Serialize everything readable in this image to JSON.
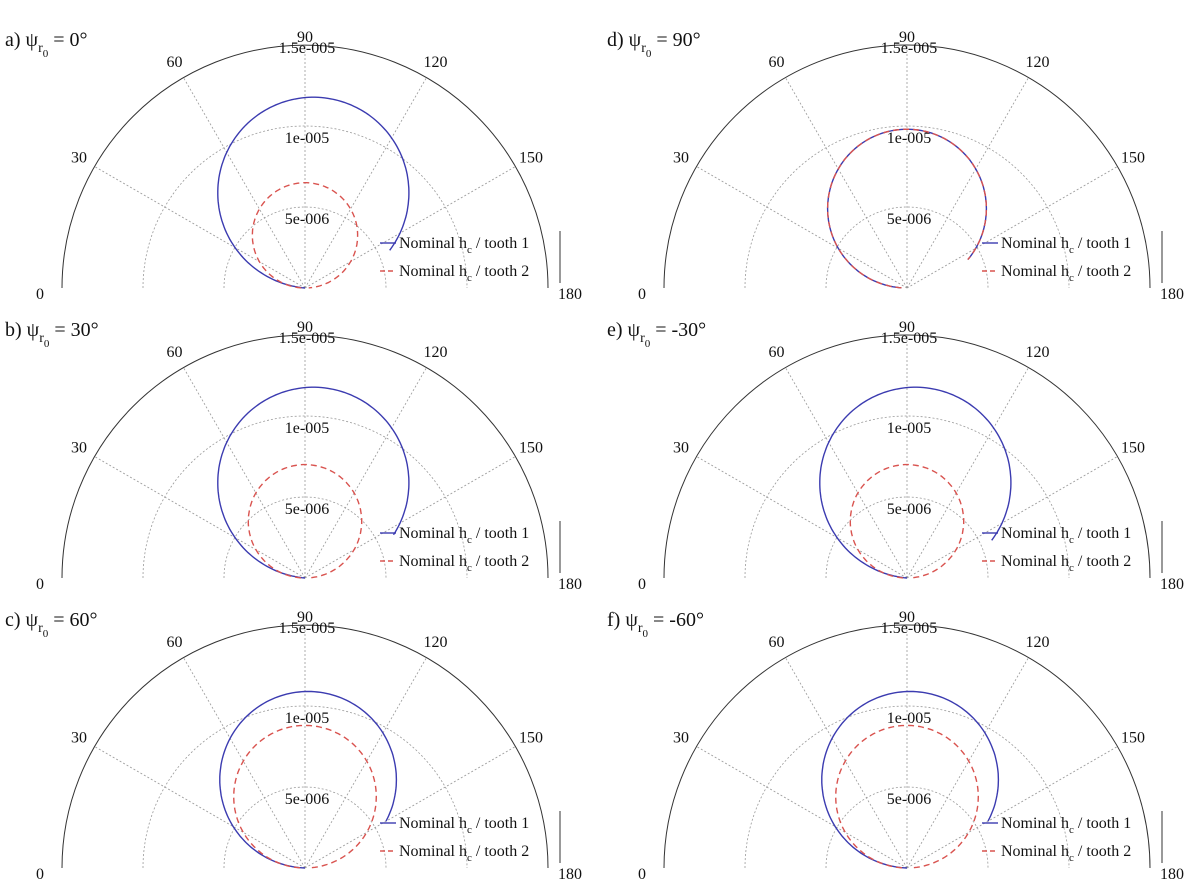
{
  "legend": {
    "series1": "Nominal h",
    "series1_sub": "c",
    "series1_suffix": " / tooth 1",
    "series2": "Nominal h",
    "series2_sub": "c",
    "series2_suffix": " / tooth 2"
  },
  "colors": {
    "series1": "#3b3bb0",
    "series2": "#d9534f",
    "axis": "#333333",
    "grid": "#9a9a9a"
  },
  "chart_data": [
    {
      "type": "polar-line",
      "panel_label": "a) ψ",
      "subscript": "r",
      "subsubscript": "0",
      "angle_text": " = 0°",
      "theta_ticks": [
        "0",
        "30",
        "60",
        "90",
        "120",
        "150",
        "180"
      ],
      "r_ticks": [
        "5e-006",
        "1e-005",
        "1.5e-005"
      ],
      "rlim": [
        0,
        1.5e-05
      ],
      "thetalim": [
        0,
        180
      ],
      "series": [
        {
          "values": {
            "r_max": 1.18e-05,
            "theta_peak": 95,
            "theta_start": 2,
            "theta_end": 156
          }
        },
        {
          "values": {
            "r_max": 6.5e-06,
            "theta_peak": 90,
            "theta_start": 2,
            "theta_end": 178
          }
        }
      ]
    },
    {
      "type": "polar-line",
      "panel_label": "b) ψ",
      "subscript": "r",
      "subsubscript": "0",
      "angle_text": " = 30°",
      "theta_ticks": [
        "0",
        "30",
        "60",
        "90",
        "120",
        "150",
        "180"
      ],
      "r_ticks": [
        "5e-006",
        "1e-005",
        "1.5e-005"
      ],
      "rlim": [
        0,
        1.5e-05
      ],
      "thetalim": [
        0,
        180
      ],
      "series": [
        {
          "values": {
            "r_max": 1.18e-05,
            "theta_peak": 95,
            "theta_start": 2,
            "theta_end": 154
          }
        },
        {
          "values": {
            "r_max": 7e-06,
            "theta_peak": 90,
            "theta_start": 2,
            "theta_end": 178
          }
        }
      ]
    },
    {
      "type": "polar-line",
      "panel_label": "c) ψ",
      "subscript": "r",
      "subsubscript": "0",
      "angle_text": " = 60°",
      "theta_ticks": [
        "0",
        "30",
        "60",
        "90",
        "120",
        "150",
        "180"
      ],
      "r_ticks": [
        "5e-006",
        "1e-005",
        "1.5e-005"
      ],
      "rlim": [
        0,
        1.5e-05
      ],
      "thetalim": [
        0,
        180
      ],
      "series": [
        {
          "values": {
            "r_max": 1.09e-05,
            "theta_peak": 92,
            "theta_start": 2,
            "theta_end": 150
          }
        },
        {
          "values": {
            "r_max": 8.8e-06,
            "theta_peak": 90,
            "theta_start": 2,
            "theta_end": 178
          }
        }
      ]
    },
    {
      "type": "polar-line",
      "panel_label": "d) ψ",
      "subscript": "r",
      "subsubscript": "0",
      "angle_text": " = 90°",
      "theta_ticks": [
        "0",
        "30",
        "60",
        "90",
        "120",
        "150",
        "180"
      ],
      "r_ticks": [
        "5e-006",
        "1e-005",
        "1.5e-005"
      ],
      "rlim": [
        0,
        1.5e-05
      ],
      "thetalim": [
        0,
        180
      ],
      "series": [
        {
          "values": {
            "r_max": 9.8e-06,
            "theta_peak": 90,
            "theta_start": 2,
            "theta_end": 155
          }
        },
        {
          "values": {
            "r_max": 9.8e-06,
            "theta_peak": 90,
            "theta_start": 2,
            "theta_end": 155
          }
        }
      ]
    },
    {
      "type": "polar-line",
      "panel_label": "e) ψ",
      "subscript": "r",
      "subsubscript": "0",
      "angle_text": " = -30°",
      "theta_ticks": [
        "0",
        "30",
        "60",
        "90",
        "120",
        "150",
        "180"
      ],
      "r_ticks": [
        "5e-006",
        "1e-005",
        "1.5e-005"
      ],
      "rlim": [
        0,
        1.5e-05
      ],
      "thetalim": [
        0,
        180
      ],
      "series": [
        {
          "values": {
            "r_max": 1.18e-05,
            "theta_peak": 95,
            "theta_start": 2,
            "theta_end": 156
          }
        },
        {
          "values": {
            "r_max": 7e-06,
            "theta_peak": 90,
            "theta_start": 2,
            "theta_end": 178
          }
        }
      ]
    },
    {
      "type": "polar-line",
      "panel_label": "f) ψ",
      "subscript": "r",
      "subsubscript": "0",
      "angle_text": " = -60°",
      "theta_ticks": [
        "0",
        "30",
        "60",
        "90",
        "120",
        "150",
        "180"
      ],
      "r_ticks": [
        "5e-006",
        "1e-005",
        "1.5e-005"
      ],
      "rlim": [
        0,
        1.5e-05
      ],
      "thetalim": [
        0,
        180
      ],
      "series": [
        {
          "values": {
            "r_max": 1.09e-05,
            "theta_peak": 92,
            "theta_start": 2,
            "theta_end": 150
          }
        },
        {
          "values": {
            "r_max": 8.8e-06,
            "theta_peak": 90,
            "theta_start": 2,
            "theta_end": 178
          }
        }
      ]
    }
  ]
}
